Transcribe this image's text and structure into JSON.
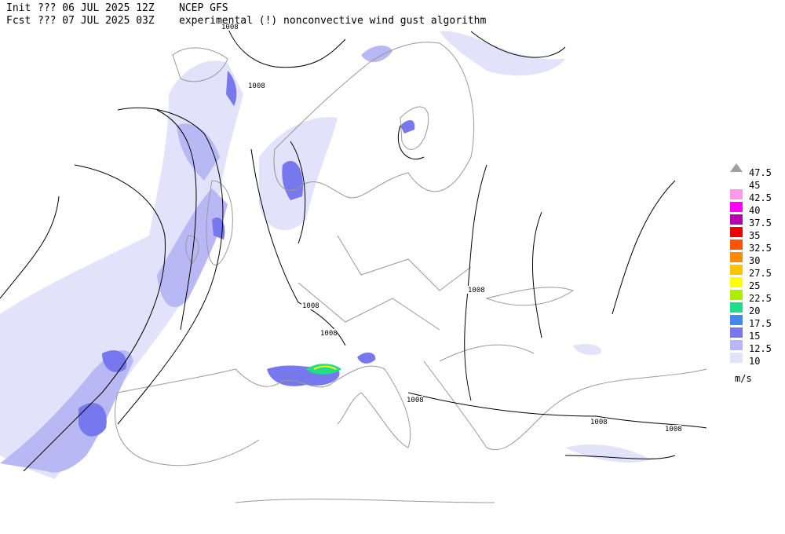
{
  "header": {
    "init_label": "Init",
    "init": "??? 06 JUL 2025 12Z",
    "model": "NCEP GFS",
    "fcst_label": "Fcst",
    "fcst": "??? 07 JUL 2025 03Z",
    "description": "experimental (!) nonconvective wind gust algorithm"
  },
  "isobar_labels": [
    "1008",
    "1008",
    "1008",
    "1008",
    "1008",
    "1008",
    "1008",
    "1008"
  ],
  "legend": {
    "unit": "m/s",
    "levels": [
      {
        "label": "47.5",
        "color": "#a0a0a0"
      },
      {
        "label": "45",
        "color": "#ffffff"
      },
      {
        "label": "42.5",
        "color": "#ff99ee"
      },
      {
        "label": "40",
        "color": "#ff00ff"
      },
      {
        "label": "37.5",
        "color": "#b000b0"
      },
      {
        "label": "35",
        "color": "#ee0000"
      },
      {
        "label": "32.5",
        "color": "#ff5500"
      },
      {
        "label": "30",
        "color": "#ff8c00"
      },
      {
        "label": "27.5",
        "color": "#ffc400"
      },
      {
        "label": "25",
        "color": "#ffff00"
      },
      {
        "label": "22.5",
        "color": "#aaee00"
      },
      {
        "label": "20",
        "color": "#22dd88"
      },
      {
        "label": "17.5",
        "color": "#4488ee"
      },
      {
        "label": "15",
        "color": "#7777ee"
      },
      {
        "label": "12.5",
        "color": "#b8b8f4"
      },
      {
        "label": "10",
        "color": "#e2e2fa"
      }
    ]
  }
}
